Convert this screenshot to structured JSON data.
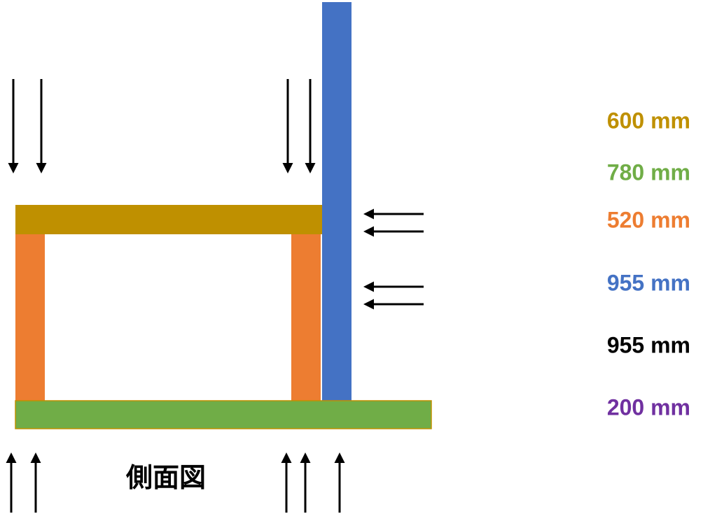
{
  "dimensions": [
    "600 mm",
    "780 mm",
    "520 mm",
    "955 mm",
    "955 mm",
    "200 mm"
  ],
  "caption": "側面図"
}
